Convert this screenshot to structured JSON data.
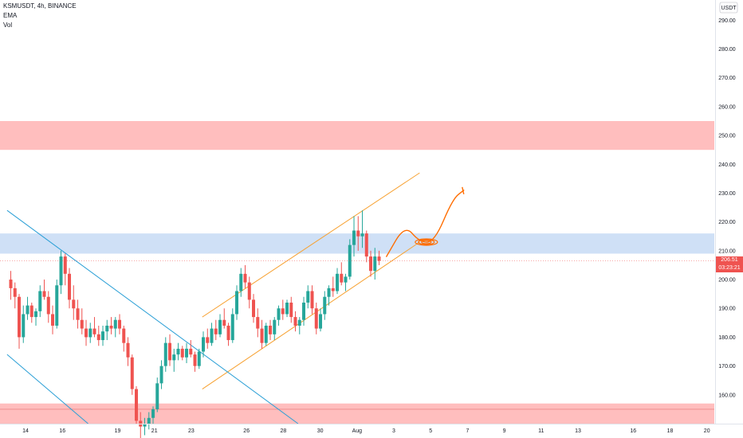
{
  "legend": {
    "symbol_line": "KSMUSDT, 4h, BINANCE",
    "ema_label": "EMA",
    "vol_label": "Vol"
  },
  "price_axis": {
    "currency_label": "USDT",
    "current_price": "206.51",
    "countdown": "03:23:21"
  },
  "colors": {
    "up": "#26a69a",
    "down": "#ef5350",
    "channel": "#f7a233",
    "downtrend": "#2a9fd6",
    "support_zone": "#ffb3b3",
    "resistance_zone": "#c7daf5",
    "arrow": "#ff6d00"
  },
  "chart_data": {
    "type": "candlestick",
    "title": "KSMUSDT, 4h, BINANCE",
    "indicators": [
      "EMA",
      "Vol"
    ],
    "ylim": [
      150,
      297
    ],
    "yticks": [
      160,
      170,
      180,
      190,
      200,
      210,
      220,
      230,
      240,
      250,
      260,
      270,
      280,
      290
    ],
    "ytick_labels": [
      "160.00",
      "170.00",
      "180.00",
      "190.00",
      "200.00",
      "210.00",
      "220.00",
      "230.00",
      "240.00",
      "250.00",
      "260.00",
      "270.00",
      "280.00",
      "290.00"
    ],
    "xlim": [
      13.2,
      21.2
    ],
    "xticks": [
      {
        "label": "14",
        "x": 14
      },
      {
        "label": "16",
        "x": 16
      },
      {
        "label": "19",
        "x": 19
      },
      {
        "label": "21",
        "x": 21
      },
      {
        "label": "23",
        "x": 23
      },
      {
        "label": "26",
        "x": 26
      },
      {
        "label": "28",
        "x": 28
      },
      {
        "label": "30",
        "x": 30
      },
      {
        "label": "Aug",
        "x": 32
      },
      {
        "label": "3",
        "x": 34
      },
      {
        "label": "5",
        "x": 36
      },
      {
        "label": "7",
        "x": 38
      },
      {
        "label": "9",
        "x": 40
      },
      {
        "label": "11",
        "x": 42
      },
      {
        "label": "13",
        "x": 44
      },
      {
        "label": "16",
        "x": 47
      },
      {
        "label": "18",
        "x": 49
      },
      {
        "label": "20",
        "x": 51
      }
    ],
    "x_calendar_order": [
      "Jul 14 - Jul 31",
      "Aug 1 - Aug 20"
    ],
    "last_price": 206.51,
    "zones": [
      {
        "kind": "resistance",
        "low": 245,
        "high": 255
      },
      {
        "kind": "support_flip",
        "low": 209,
        "high": 216
      },
      {
        "kind": "support",
        "low": 150,
        "high": 157
      }
    ],
    "channel_upper": [
      [
        23.6,
        187
      ],
      [
        35.4,
        237
      ]
    ],
    "channel_lower": [
      [
        23.6,
        162
      ],
      [
        35.4,
        213
      ]
    ],
    "downtrend_upper": [
      [
        13.0,
        224
      ],
      [
        28.8,
        150
      ]
    ],
    "downtrend_lower": [
      [
        13.0,
        174
      ],
      [
        17.4,
        150
      ]
    ],
    "projection_arrow": [
      [
        33.6,
        208
      ],
      [
        34.6,
        219
      ],
      [
        35.4,
        213
      ],
      [
        36.2,
        213
      ],
      [
        37.2,
        228
      ],
      [
        37.8,
        231
      ]
    ],
    "candles": [
      [
        200,
        203,
        193,
        197
      ],
      [
        197,
        199,
        190,
        194
      ],
      [
        194,
        195,
        176,
        180
      ],
      [
        180,
        191,
        178,
        188
      ],
      [
        188,
        194,
        186,
        191
      ],
      [
        191,
        192,
        185,
        187
      ],
      [
        187,
        190,
        184,
        189
      ],
      [
        189,
        198,
        187,
        196
      ],
      [
        196,
        200,
        193,
        194
      ],
      [
        194,
        196,
        185,
        188
      ],
      [
        188,
        191,
        181,
        184
      ],
      [
        184,
        200,
        183,
        198
      ],
      [
        198,
        210,
        195,
        208
      ],
      [
        208,
        209,
        198,
        202
      ],
      [
        202,
        204,
        190,
        193
      ],
      [
        193,
        198,
        186,
        190
      ],
      [
        190,
        193,
        183,
        186
      ],
      [
        186,
        190,
        181,
        183
      ],
      [
        183,
        186,
        177,
        180
      ],
      [
        180,
        185,
        178,
        183
      ],
      [
        183,
        187,
        180,
        181
      ],
      [
        181,
        184,
        177,
        179
      ],
      [
        179,
        184,
        177,
        182
      ],
      [
        182,
        186,
        179,
        184
      ],
      [
        184,
        187,
        181,
        183
      ],
      [
        183,
        187,
        180,
        186
      ],
      [
        186,
        188,
        181,
        183
      ],
      [
        183,
        184,
        175,
        178
      ],
      [
        178,
        180,
        170,
        173
      ],
      [
        173,
        174,
        160,
        162
      ],
      [
        162,
        163,
        150,
        151
      ],
      [
        151,
        154,
        145,
        149
      ],
      [
        149,
        152,
        146,
        150
      ],
      [
        150,
        154,
        148,
        152
      ],
      [
        152,
        156,
        150,
        155
      ],
      [
        155,
        166,
        154,
        164
      ],
      [
        164,
        172,
        162,
        170
      ],
      [
        170,
        180,
        168,
        178
      ],
      [
        178,
        181,
        170,
        172
      ],
      [
        172,
        176,
        168,
        174
      ],
      [
        174,
        178,
        172,
        176
      ],
      [
        176,
        177,
        172,
        173
      ],
      [
        173,
        178,
        171,
        176
      ],
      [
        176,
        179,
        173,
        174
      ],
      [
        174,
        175,
        168,
        170
      ],
      [
        170,
        176,
        169,
        175
      ],
      [
        175,
        182,
        173,
        180
      ],
      [
        180,
        183,
        176,
        178
      ],
      [
        178,
        185,
        177,
        183
      ],
      [
        183,
        186,
        179,
        181
      ],
      [
        181,
        188,
        180,
        186
      ],
      [
        186,
        190,
        183,
        184
      ],
      [
        184,
        185,
        177,
        179
      ],
      [
        179,
        190,
        178,
        188
      ],
      [
        188,
        198,
        186,
        196
      ],
      [
        196,
        204,
        194,
        202
      ],
      [
        202,
        205,
        197,
        199
      ],
      [
        199,
        201,
        190,
        193
      ],
      [
        193,
        195,
        185,
        187
      ],
      [
        187,
        190,
        180,
        183
      ],
      [
        183,
        186,
        176,
        178
      ],
      [
        178,
        185,
        177,
        184
      ],
      [
        184,
        186,
        179,
        181
      ],
      [
        181,
        187,
        179,
        186
      ],
      [
        186,
        191,
        184,
        190
      ],
      [
        190,
        193,
        186,
        188
      ],
      [
        188,
        193,
        187,
        192
      ],
      [
        192,
        194,
        185,
        187
      ],
      [
        187,
        189,
        182,
        184
      ],
      [
        184,
        187,
        181,
        186
      ],
      [
        186,
        194,
        184,
        192
      ],
      [
        192,
        198,
        190,
        196
      ],
      [
        196,
        198,
        188,
        190
      ],
      [
        190,
        192,
        181,
        183
      ],
      [
        183,
        190,
        182,
        188
      ],
      [
        188,
        196,
        186,
        194
      ],
      [
        194,
        198,
        191,
        197
      ],
      [
        197,
        201,
        194,
        196
      ],
      [
        196,
        204,
        195,
        202
      ],
      [
        202,
        206,
        198,
        199
      ],
      [
        199,
        202,
        196,
        201
      ],
      [
        201,
        214,
        200,
        212
      ],
      [
        212,
        222,
        208,
        217
      ],
      [
        217,
        222,
        210,
        215
      ],
      [
        215,
        224,
        211,
        216
      ],
      [
        216,
        217,
        206,
        208
      ],
      [
        208,
        210,
        201,
        203
      ],
      [
        203,
        211,
        200,
        208
      ],
      [
        208,
        210,
        205,
        206.51
      ]
    ]
  }
}
